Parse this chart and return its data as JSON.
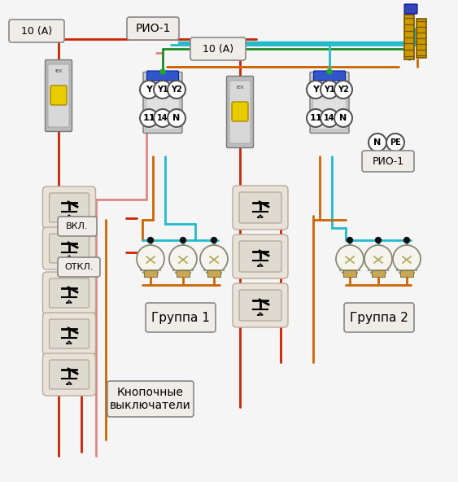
{
  "bg_color": "#f5f5f5",
  "wire_colors": {
    "red": "#cc2200",
    "blue": "#2288cc",
    "cyan": "#22bbcc",
    "green": "#228822",
    "orange": "#cc6600",
    "pink": "#dd8888",
    "dark_red": "#991100"
  },
  "labels": {
    "breaker1": "10 (А)",
    "breaker2": "10 (А)",
    "rio1_top": "РИО-1",
    "rio2_label": "РИО-1",
    "Y": "Y",
    "Y1": "Y1",
    "Y2": "Y2",
    "n11": "11",
    "n14": "14",
    "nN": "N",
    "bus_N": "N",
    "bus_PE": "PE",
    "group1": "Группа 1",
    "group2": "Группа 2",
    "buttons": "Кнопочные\nвыключатели",
    "vkl": "ВКЛ.",
    "otkl": "ОТКЛ."
  }
}
